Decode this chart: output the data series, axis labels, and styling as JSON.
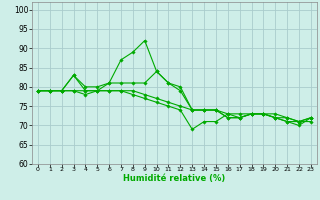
{
  "xlabel": "Humidité relative (%)",
  "xlim": [
    -0.5,
    23.5
  ],
  "ylim": [
    60,
    102
  ],
  "yticks": [
    60,
    65,
    70,
    75,
    80,
    85,
    90,
    95,
    100
  ],
  "xticks": [
    0,
    1,
    2,
    3,
    4,
    5,
    6,
    7,
    8,
    9,
    10,
    11,
    12,
    13,
    14,
    15,
    16,
    17,
    18,
    19,
    20,
    21,
    22,
    23
  ],
  "background_color": "#ceeee8",
  "grid_color": "#aacccc",
  "line_color": "#00aa00",
  "series": [
    [
      79,
      79,
      79,
      83,
      80,
      80,
      81,
      87,
      89,
      92,
      84,
      81,
      80,
      74,
      74,
      74,
      72,
      72,
      73,
      73,
      72,
      72,
      71,
      72
    ],
    [
      79,
      79,
      79,
      83,
      79,
      79,
      81,
      81,
      81,
      81,
      84,
      81,
      79,
      74,
      74,
      74,
      72,
      72,
      73,
      73,
      72,
      71,
      70,
      72
    ],
    [
      79,
      79,
      79,
      79,
      78,
      79,
      79,
      79,
      79,
      78,
      77,
      76,
      75,
      74,
      74,
      74,
      73,
      73,
      73,
      73,
      73,
      72,
      71,
      71
    ],
    [
      79,
      79,
      79,
      79,
      79,
      79,
      79,
      79,
      78,
      77,
      76,
      75,
      74,
      69,
      71,
      71,
      73,
      72,
      73,
      73,
      72,
      71,
      71,
      72
    ]
  ]
}
